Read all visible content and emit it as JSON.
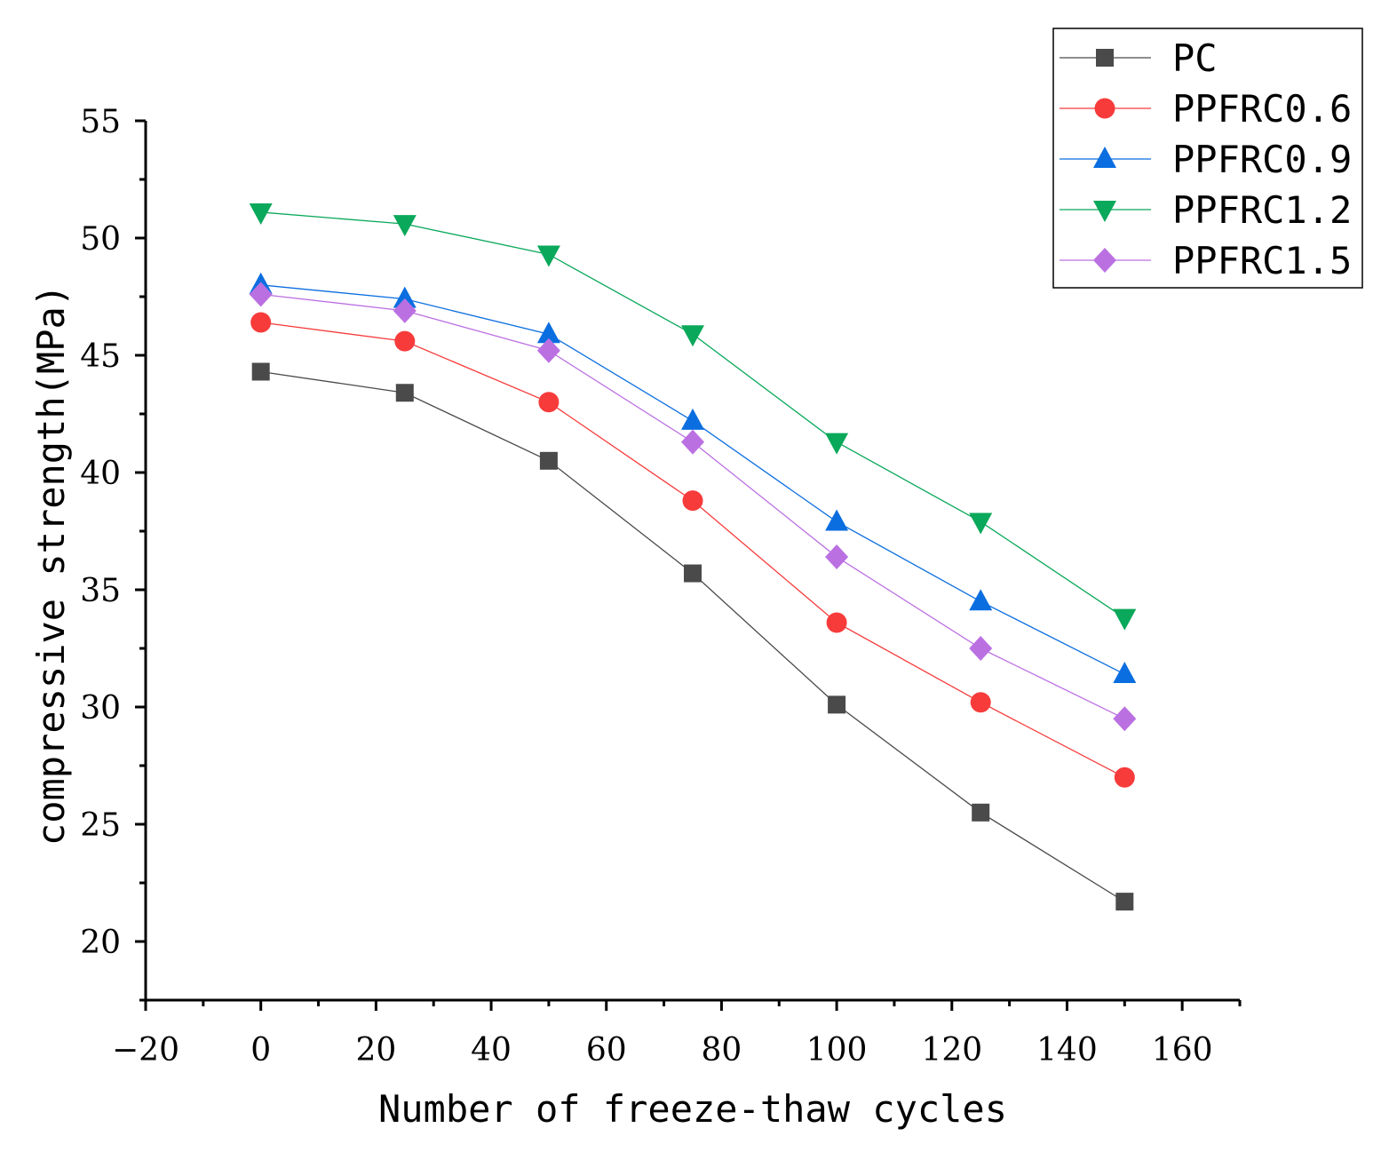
{
  "chart_data": {
    "type": "line",
    "title": "",
    "xlabel": "Number of freeze-thaw cycles",
    "ylabel": "compressive strength(MPa)",
    "xlim": [
      -20,
      170
    ],
    "ylim": [
      17.5,
      55
    ],
    "xticks": [
      -20,
      0,
      20,
      40,
      60,
      80,
      100,
      120,
      140,
      160
    ],
    "xtick_labels": [
      "−20",
      "0",
      "20",
      "40",
      "60",
      "80",
      "100",
      "120",
      "140",
      "160"
    ],
    "yticks": [
      20,
      25,
      30,
      35,
      40,
      45,
      50,
      55
    ],
    "ytick_labels": [
      "20",
      "25",
      "30",
      "35",
      "40",
      "45",
      "50",
      "55"
    ],
    "grid": false,
    "legend_position": "top-right",
    "x": [
      0,
      25,
      50,
      75,
      100,
      125,
      150
    ],
    "series": [
      {
        "name": "PC",
        "marker": "square",
        "color": "#4a4a4a",
        "values": [
          44.3,
          43.4,
          40.5,
          35.7,
          30.1,
          25.5,
          21.7
        ]
      },
      {
        "name": "PPFRC0.6",
        "marker": "circle",
        "color": "#f73b3b",
        "values": [
          46.4,
          45.6,
          43.0,
          38.8,
          33.6,
          30.2,
          27.0
        ]
      },
      {
        "name": "PPFRC0.9",
        "marker": "triangle-up",
        "color": "#0b6ee0",
        "values": [
          48.0,
          47.4,
          45.9,
          42.2,
          37.9,
          34.5,
          31.4
        ]
      },
      {
        "name": "PPFRC1.2",
        "marker": "triangle-down",
        "color": "#0aa85a",
        "values": [
          51.1,
          50.6,
          49.3,
          45.9,
          41.3,
          37.9,
          33.8
        ]
      },
      {
        "name": "PPFRC1.5",
        "marker": "diamond",
        "color": "#bb70e2",
        "values": [
          47.6,
          46.9,
          45.2,
          41.3,
          36.4,
          32.5,
          29.5
        ]
      }
    ]
  }
}
